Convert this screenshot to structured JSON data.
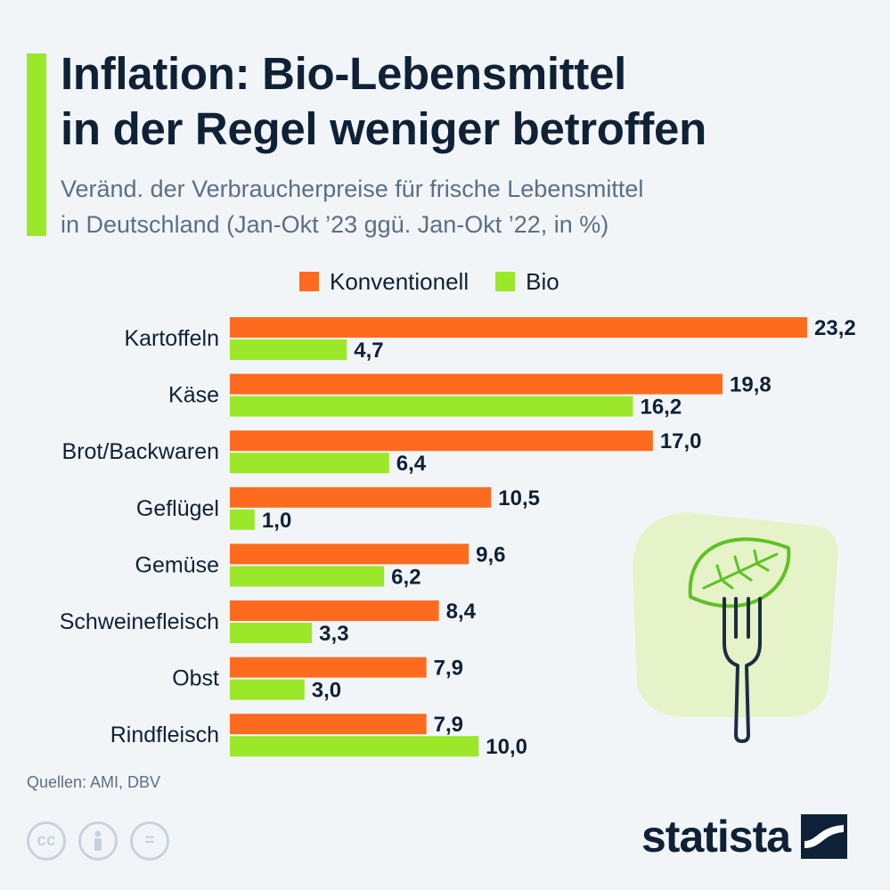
{
  "header": {
    "title_line1": "Inflation: Bio-Lebensmittel",
    "title_line2": "in der Regel weniger betroffen",
    "subtitle_line1": "Veränd. der Verbraucherpreise für frische Lebensmittel",
    "subtitle_line2": "in Deutschland (Jan-Okt ’23 ggü. Jan-Okt ’22, in %)"
  },
  "legend": {
    "conventional": "Konventionell",
    "bio": "Bio"
  },
  "colors": {
    "conventional": "#ff6b1e",
    "bio": "#9be82a",
    "text": "#0e2136",
    "accent": "#9be82a"
  },
  "chart_data": {
    "type": "bar",
    "orientation": "horizontal",
    "categories": [
      "Kartoffeln",
      "Käse",
      "Brot/Backwaren",
      "Geflügel",
      "Gemüse",
      "Schweinefleisch",
      "Obst",
      "Rindfleisch"
    ],
    "series": [
      {
        "name": "Konventionell",
        "values": [
          23.2,
          19.8,
          17.0,
          10.5,
          9.6,
          8.4,
          7.9,
          7.9
        ]
      },
      {
        "name": "Bio",
        "values": [
          4.7,
          16.2,
          6.4,
          1.0,
          6.2,
          3.3,
          3.0,
          10.0
        ]
      }
    ],
    "value_labels": [
      [
        "23,2",
        "19,8",
        "17,0",
        "10,5",
        "9,6",
        "8,4",
        "7,9",
        "7,9"
      ],
      [
        "4,7",
        "16,2",
        "6,4",
        "1,0",
        "6,2",
        "3,3",
        "3,0",
        "10,0"
      ]
    ],
    "title": "Inflation: Bio-Lebensmittel in der Regel weniger betroffen",
    "xlim": [
      0,
      23.2
    ],
    "grid": false,
    "legend_position": "top"
  },
  "footer": {
    "source": "Quellen: AMI, DBV",
    "cc_icons": [
      "cc-icon",
      "person-icon",
      "equals-icon"
    ],
    "brand": "statista"
  }
}
